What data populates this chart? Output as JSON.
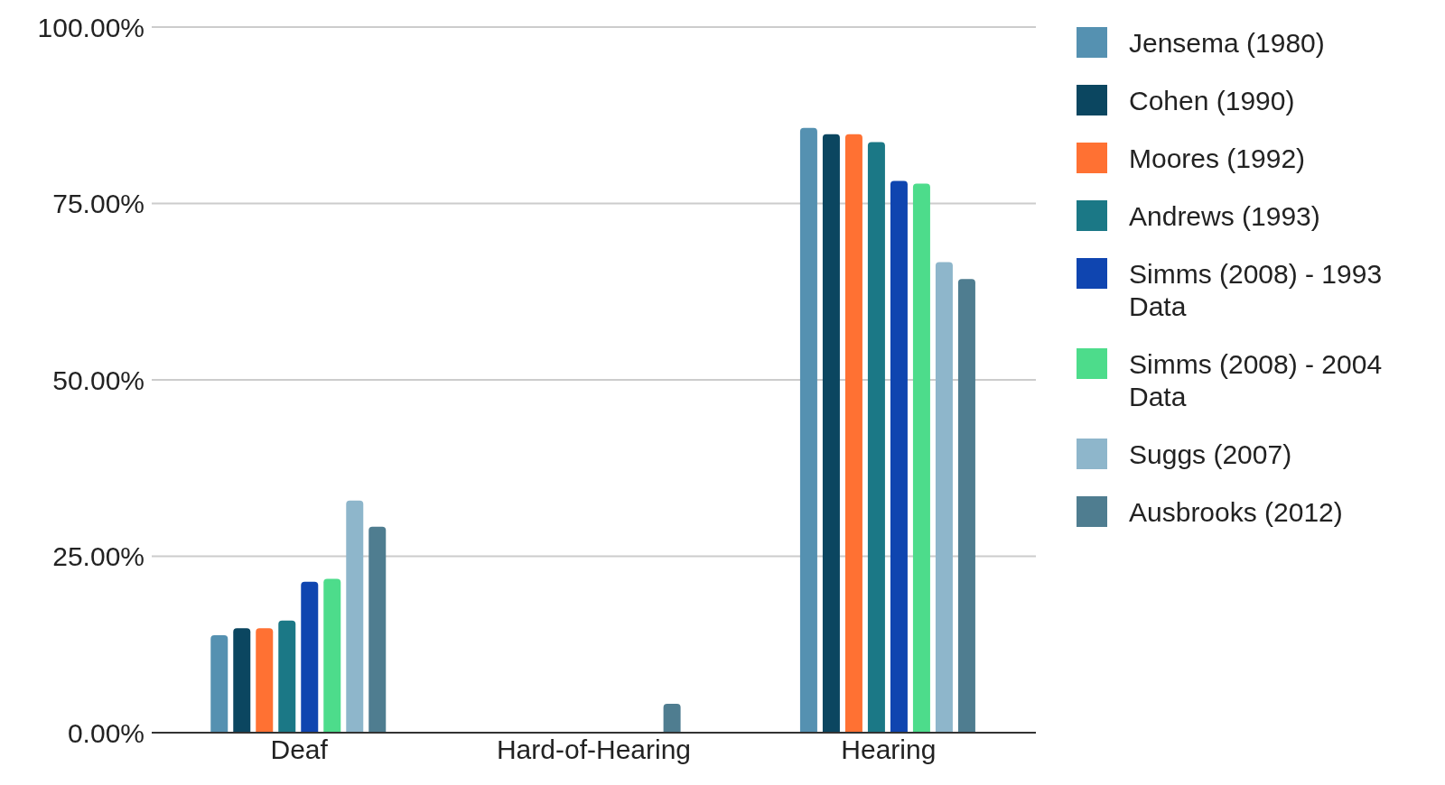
{
  "chart_data": {
    "type": "bar",
    "categories": [
      "Deaf",
      "Hard-of-Hearing",
      "Hearing"
    ],
    "series": [
      {
        "name": "Jensema (1980)",
        "color": "#5591b1",
        "values": [
          13.8,
          null,
          85.7
        ]
      },
      {
        "name": "Cohen (1990)",
        "color": "#0b4660",
        "values": [
          14.8,
          null,
          84.8
        ]
      },
      {
        "name": "Moores (1992)",
        "color": "#ff7133",
        "values": [
          14.8,
          null,
          84.8
        ]
      },
      {
        "name": "Andrews (1993)",
        "color": "#1b7886",
        "values": [
          15.9,
          null,
          83.7
        ]
      },
      {
        "name": "Simms (2008) - 1993 Data",
        "color": "#0f45b0",
        "values": [
          21.4,
          null,
          78.2
        ]
      },
      {
        "name": "Simms (2008) - 2004 Data",
        "color": "#4ddc8b",
        "values": [
          21.8,
          null,
          77.8
        ]
      },
      {
        "name": "Suggs (2007)",
        "color": "#8eb6cb",
        "values": [
          32.9,
          null,
          66.7
        ]
      },
      {
        "name": "Ausbrooks (2012)",
        "color": "#4f7d90",
        "values": [
          29.2,
          4.1,
          64.3
        ]
      }
    ],
    "ylim": [
      0,
      100
    ],
    "yticks": [
      {
        "value": 0,
        "label": "0.00%"
      },
      {
        "value": 25,
        "label": "25.00%"
      },
      {
        "value": 50,
        "label": "50.00%"
      },
      {
        "value": 75,
        "label": "75.00%"
      },
      {
        "value": 100,
        "label": "100.00%"
      }
    ],
    "grid": "y",
    "legend": "top right"
  }
}
